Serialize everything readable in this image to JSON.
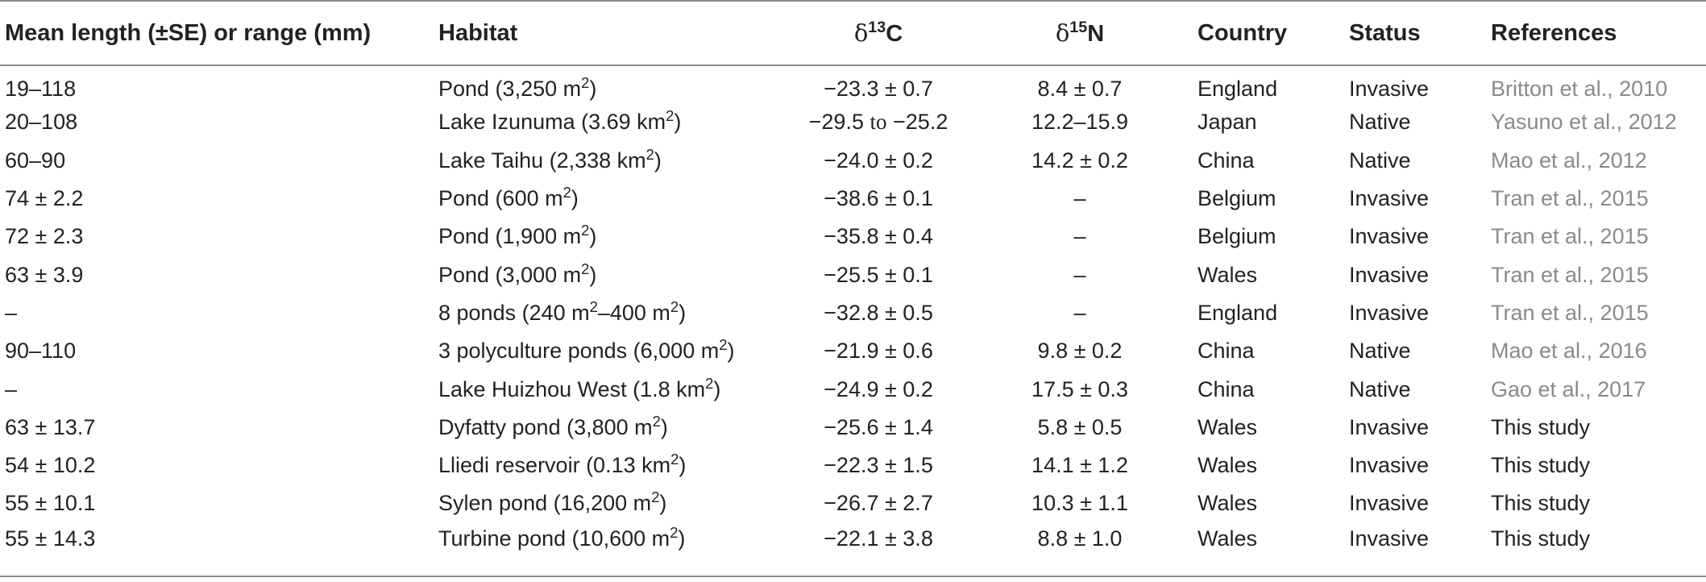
{
  "table": {
    "headers": {
      "length": "Mean length (±SE) or range (mm)",
      "habitat": "Habitat",
      "c13": {
        "sup": "13",
        "base": "C",
        "symbol": "δ"
      },
      "n15": {
        "sup": "15",
        "base": "N",
        "symbol": "δ"
      },
      "country": "Country",
      "status": "Status",
      "references": "References"
    },
    "rows": [
      {
        "length": "19–118",
        "habitat": "Pond (3,250 m",
        "habitat_sup": "2",
        "habitat_end": ")",
        "c13": "−23.3 ± 0.7",
        "n15": "8.4 ± 0.7",
        "country": "England",
        "status": "Invasive",
        "reference": "Britton et al., 2010"
      },
      {
        "length": "20–108",
        "habitat": "Lake Izunuma (3.69 km",
        "habitat_sup": "2",
        "habitat_end": ")",
        "c13_a": "−29.5",
        "c13_to": "to",
        "c13_b": "−25.2",
        "n15": "12.2–15.9",
        "country": "Japan",
        "status": "Native",
        "reference": "Yasuno et al., 2012"
      },
      {
        "length": "60–90",
        "habitat": "Lake Taihu (2,338 km",
        "habitat_sup": "2",
        "habitat_end": ")",
        "c13": "−24.0 ± 0.2",
        "n15": "14.2 ± 0.2",
        "country": "China",
        "status": "Native",
        "reference": "Mao et al., 2012"
      },
      {
        "length": "74 ± 2.2",
        "habitat": "Pond (600 m",
        "habitat_sup": "2",
        "habitat_end": ")",
        "c13": "−38.6 ± 0.1",
        "n15": "–",
        "country": "Belgium",
        "status": "Invasive",
        "reference": "Tran et al., 2015"
      },
      {
        "length": "72 ± 2.3",
        "habitat": "Pond (1,900 m",
        "habitat_sup": "2",
        "habitat_end": ")",
        "c13": "−35.8 ± 0.4",
        "n15": "–",
        "country": "Belgium",
        "status": "Invasive",
        "reference": "Tran et al., 2015"
      },
      {
        "length": "63 ± 3.9",
        "habitat": "Pond (3,000 m",
        "habitat_sup": "2",
        "habitat_end": ")",
        "c13": "−25.5 ± 0.1",
        "n15": "–",
        "country": "Wales",
        "status": "Invasive",
        "reference": "Tran et al., 2015"
      },
      {
        "length": "–",
        "habitat": "8 ponds (240 m",
        "habitat_sup": "2",
        "habitat_mid": "–400 m",
        "habitat_sup2": "2",
        "habitat_end": ")",
        "c13": "−32.8 ± 0.5",
        "n15": "–",
        "country": "England",
        "status": "Invasive",
        "reference": "Tran et al., 2015"
      },
      {
        "length": "90–110",
        "habitat": "3 polyculture ponds (6,000 m",
        "habitat_sup": "2",
        "habitat_end": ")",
        "c13": "−21.9 ± 0.6",
        "n15": "9.8 ± 0.2",
        "country": "China",
        "status": "Native",
        "reference": "Mao et al., 2016"
      },
      {
        "length": "–",
        "habitat": "Lake Huizhou West (1.8 km",
        "habitat_sup": "2",
        "habitat_end": ")",
        "c13": "−24.9 ± 0.2",
        "n15": "17.5 ± 0.3",
        "country": "China",
        "status": "Native",
        "reference": "Gao et al., 2017"
      },
      {
        "length": "63 ± 13.7",
        "habitat": "Dyfatty pond (3,800 m",
        "habitat_sup": "2",
        "habitat_end": ")",
        "c13": "−25.6 ± 1.4",
        "n15": "5.8 ± 0.5",
        "country": "Wales",
        "status": "Invasive",
        "reference": "This study"
      },
      {
        "length": "54 ± 10.2",
        "habitat": "Lliedi reservoir (0.13 km",
        "habitat_sup": "2",
        "habitat_end": ")",
        "c13": "−22.3 ± 1.5",
        "n15": "14.1 ± 1.2",
        "country": "Wales",
        "status": "Invasive",
        "reference": "This study"
      },
      {
        "length": "55 ± 10.1",
        "habitat": "Sylen pond (16,200 m",
        "habitat_sup": "2",
        "habitat_end": ")",
        "c13": "−26.7 ± 2.7",
        "n15": "10.3 ± 1.1",
        "country": "Wales",
        "status": "Invasive",
        "reference": "This study"
      },
      {
        "length": "55 ± 14.3",
        "habitat": "Turbine pond (10,600 m",
        "habitat_sup": "2",
        "habitat_end": ")",
        "c13": "−22.1 ± 3.8",
        "n15": "8.8 ± 1.0",
        "country": "Wales",
        "status": "Invasive",
        "reference": "This study"
      }
    ]
  },
  "colors": {
    "text": "#222222",
    "reference_link": "#8a8a8a",
    "rule": "#8a8a8a"
  }
}
